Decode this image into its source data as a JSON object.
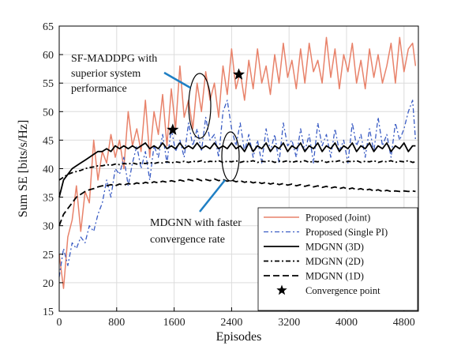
{
  "chart_data": {
    "type": "line",
    "xlabel": "Episodes",
    "ylabel": "Sum SE [bits/s/Hz]",
    "xlim": [
      0,
      5000
    ],
    "ylim": [
      15,
      65
    ],
    "xticks": [
      0,
      800,
      1600,
      2400,
      3200,
      4000,
      4800
    ],
    "yticks": [
      15,
      20,
      25,
      30,
      35,
      40,
      45,
      50,
      55,
      60,
      65
    ],
    "grid": true,
    "legend_position": "bottom-right",
    "series": [
      {
        "name": "Proposed (Joint)",
        "color": "#e8826a",
        "dash": "solid",
        "x": [
          0,
          60,
          120,
          180,
          240,
          300,
          360,
          420,
          480,
          540,
          600,
          660,
          720,
          780,
          840,
          900,
          960,
          1020,
          1080,
          1140,
          1200,
          1260,
          1320,
          1380,
          1440,
          1500,
          1560,
          1620,
          1680,
          1740,
          1800,
          1860,
          1920,
          1980,
          2040,
          2100,
          2160,
          2220,
          2280,
          2340,
          2400,
          2460,
          2520,
          2580,
          2640,
          2700,
          2760,
          2820,
          2880,
          2940,
          3000,
          3060,
          3120,
          3180,
          3240,
          3300,
          3360,
          3420,
          3480,
          3540,
          3600,
          3660,
          3720,
          3780,
          3840,
          3900,
          3960,
          4020,
          4080,
          4140,
          4200,
          4260,
          4320,
          4380,
          4440,
          4500,
          4560,
          4620,
          4680,
          4740,
          4800,
          4860,
          4920,
          4960
        ],
        "y": [
          25,
          19,
          28,
          31,
          37,
          29,
          36,
          34,
          45,
          38,
          43,
          41,
          46,
          42,
          45,
          40,
          50,
          44,
          47,
          43,
          52,
          42,
          50,
          46,
          53,
          44,
          54,
          47,
          58,
          49,
          52,
          47,
          55,
          50,
          57,
          52,
          55,
          49,
          58,
          53,
          61,
          54,
          57,
          52,
          59,
          54,
          61,
          55,
          58,
          53,
          60,
          55,
          62,
          56,
          59,
          54,
          61,
          55,
          62,
          57,
          59,
          55,
          63,
          56,
          61,
          54,
          60,
          57,
          62,
          55,
          59,
          54,
          61,
          56,
          60,
          55,
          58,
          62,
          55,
          63,
          57,
          61,
          62,
          58
        ]
      },
      {
        "name": "Proposed (Single PI)",
        "color": "#3a5cc4",
        "dash": "dashdot",
        "x": [
          0,
          60,
          120,
          180,
          240,
          300,
          360,
          420,
          480,
          540,
          600,
          660,
          720,
          780,
          840,
          900,
          960,
          1020,
          1080,
          1140,
          1200,
          1260,
          1320,
          1380,
          1440,
          1500,
          1560,
          1620,
          1680,
          1740,
          1800,
          1860,
          1920,
          1980,
          2040,
          2100,
          2160,
          2220,
          2280,
          2340,
          2400,
          2460,
          2520,
          2580,
          2640,
          2700,
          2760,
          2820,
          2880,
          2940,
          3000,
          3060,
          3120,
          3180,
          3240,
          3300,
          3360,
          3420,
          3480,
          3540,
          3600,
          3660,
          3720,
          3780,
          3840,
          3900,
          3960,
          4020,
          4080,
          4140,
          4200,
          4260,
          4320,
          4380,
          4440,
          4500,
          4560,
          4620,
          4680,
          4740,
          4800,
          4860,
          4920,
          4960
        ],
        "y": [
          21,
          26,
          23,
          27,
          26,
          28,
          27,
          30,
          29,
          32,
          34,
          38,
          35,
          40,
          39,
          42,
          37,
          41,
          44,
          40,
          43,
          38,
          44,
          42,
          46,
          41,
          47,
          43,
          45,
          42,
          48,
          44,
          47,
          43,
          49,
          45,
          46,
          42,
          50,
          52,
          47,
          44,
          48,
          43,
          46,
          42,
          45,
          41,
          47,
          43,
          46,
          41,
          48,
          44,
          45,
          42,
          47,
          43,
          46,
          41,
          48,
          44,
          46,
          42,
          47,
          43,
          45,
          41,
          48,
          44,
          46,
          42,
          47,
          43,
          49,
          44,
          46,
          42,
          48,
          45,
          47,
          50,
          52,
          45
        ]
      },
      {
        "name": "MDGNN (3D)",
        "color": "#000000",
        "dash": "solid",
        "x": [
          0,
          60,
          120,
          180,
          240,
          300,
          360,
          420,
          480,
          540,
          600,
          660,
          720,
          780,
          840,
          900,
          960,
          1020,
          1080,
          1140,
          1200,
          1260,
          1320,
          1380,
          1440,
          1500,
          1560,
          1620,
          1680,
          1740,
          1800,
          1860,
          1920,
          1980,
          2040,
          2100,
          2160,
          2220,
          2280,
          2340,
          2400,
          2460,
          2520,
          2580,
          2640,
          2700,
          2760,
          2820,
          2880,
          2940,
          3000,
          3060,
          3120,
          3180,
          3240,
          3300,
          3360,
          3420,
          3480,
          3540,
          3600,
          3660,
          3720,
          3780,
          3840,
          3900,
          3960,
          4020,
          4080,
          4140,
          4200,
          4260,
          4320,
          4380,
          4440,
          4500,
          4560,
          4620,
          4680,
          4740,
          4800,
          4860,
          4920,
          4960
        ],
        "y": [
          35,
          38,
          39,
          40,
          40.5,
          41,
          41.5,
          42,
          42.5,
          43,
          43,
          43.5,
          43,
          44,
          43.5,
          44,
          43.5,
          44,
          43.5,
          44,
          44.5,
          43.5,
          44,
          43.5,
          44.5,
          43.5,
          44,
          43.5,
          44.5,
          43.5,
          44,
          43.5,
          44.5,
          43.5,
          44,
          43.5,
          44.5,
          43.5,
          44,
          43.5,
          44.5,
          43.5,
          44,
          43,
          44.5,
          43,
          44,
          43.5,
          44.5,
          43,
          44,
          43.5,
          44.5,
          43,
          44,
          43.5,
          44.5,
          43,
          44,
          43.5,
          44.5,
          43,
          44,
          43.5,
          44.5,
          43,
          44,
          43.5,
          44.5,
          43,
          44,
          43.5,
          44.5,
          43,
          44,
          43.5,
          44.5,
          43,
          44,
          43.5,
          44.5,
          43,
          44,
          44
        ]
      },
      {
        "name": "MDGNN (2D)",
        "color": "#000000",
        "dash": "dashdot",
        "x": [
          0,
          60,
          120,
          180,
          240,
          300,
          360,
          420,
          480,
          540,
          600,
          660,
          720,
          780,
          840,
          900,
          960,
          1020,
          1080,
          1140,
          1200,
          1260,
          1320,
          1380,
          1440,
          1500,
          1560,
          1620,
          1680,
          1740,
          1800,
          1860,
          1920,
          1980,
          2040,
          2100,
          2160,
          2220,
          2280,
          2340,
          2400,
          2460,
          2520,
          2580,
          2640,
          2700,
          2760,
          2820,
          2880,
          2940,
          3000,
          3060,
          3120,
          3180,
          3240,
          3300,
          3360,
          3420,
          3480,
          3540,
          3600,
          3660,
          3720,
          3780,
          3840,
          3900,
          3960,
          4020,
          4080,
          4140,
          4200,
          4260,
          4320,
          4380,
          4440,
          4500,
          4560,
          4620,
          4680,
          4740,
          4800,
          4860,
          4920,
          4960
        ],
        "y": [
          38,
          38.5,
          39,
          39.3,
          39.5,
          39.7,
          40,
          40.2,
          40.3,
          40.5,
          40.5,
          40.7,
          40.6,
          40.8,
          40.7,
          40.9,
          40.8,
          41,
          40.8,
          41,
          40.9,
          41.1,
          40.9,
          41.1,
          41,
          41.2,
          41,
          41.2,
          41.1,
          41.3,
          41.1,
          41.3,
          41.2,
          41.4,
          41.1,
          41.3,
          41.2,
          41.4,
          41.1,
          41.3,
          41.2,
          41.4,
          41.1,
          41.3,
          41.2,
          41.4,
          41.1,
          41.3,
          41.2,
          41.4,
          41.1,
          41.3,
          41.2,
          41.4,
          41.1,
          41.3,
          41.2,
          41.4,
          41.1,
          41.3,
          41.2,
          41.4,
          41.1,
          41.3,
          41.2,
          41.4,
          41.1,
          41.3,
          41.2,
          41.4,
          41.1,
          41.3,
          41.2,
          41.4,
          41.1,
          41.3,
          41.2,
          41.4,
          41.1,
          41.3,
          41.2,
          41.4,
          41.1,
          41.2
        ]
      },
      {
        "name": "MDGNN (1D)",
        "color": "#000000",
        "dash": "dashed",
        "x": [
          0,
          60,
          120,
          180,
          240,
          300,
          360,
          420,
          480,
          540,
          600,
          660,
          720,
          780,
          840,
          900,
          960,
          1020,
          1080,
          1140,
          1200,
          1260,
          1320,
          1380,
          1440,
          1500,
          1560,
          1620,
          1680,
          1740,
          1800,
          1860,
          1920,
          1980,
          2040,
          2100,
          2160,
          2220,
          2280,
          2340,
          2400,
          2460,
          2520,
          2580,
          2640,
          2700,
          2760,
          2820,
          2880,
          2940,
          3000,
          3060,
          3120,
          3180,
          3240,
          3300,
          3360,
          3420,
          3480,
          3540,
          3600,
          3660,
          3720,
          3780,
          3840,
          3900,
          3960,
          4020,
          4080,
          4140,
          4200,
          4260,
          4320,
          4380,
          4440,
          4500,
          4560,
          4620,
          4680,
          4740,
          4800,
          4860,
          4920,
          4960
        ],
        "y": [
          30,
          32,
          33,
          34,
          35,
          35.5,
          36,
          36.3,
          36.5,
          36.8,
          37,
          37,
          37.2,
          37,
          37.3,
          37.1,
          37.4,
          37.2,
          37.5,
          37.3,
          37.6,
          37.4,
          37.7,
          37.5,
          37.8,
          37.6,
          37.9,
          37.7,
          38,
          37.8,
          38.1,
          37.9,
          38.2,
          37.9,
          38.1,
          37.9,
          38.2,
          37.9,
          38.1,
          37.8,
          38,
          37.7,
          37.9,
          37.6,
          37.8,
          37.5,
          37.7,
          37.4,
          37.6,
          37.3,
          37.5,
          37.2,
          37.4,
          37.1,
          37.3,
          37,
          37.2,
          36.9,
          37.1,
          36.8,
          37,
          36.7,
          36.9,
          36.6,
          36.8,
          36.5,
          36.7,
          36.4,
          36.6,
          36.3,
          36.5,
          36.2,
          36.4,
          36.1,
          36.3,
          36.0,
          36.2,
          36.0,
          36.1,
          36.0,
          36.1,
          36.0,
          36.1,
          36.0
        ]
      }
    ],
    "convergence_points": {
      "name": "Convergence point",
      "points": [
        {
          "x": 1580,
          "y": 46.8
        },
        {
          "x": 2500,
          "y": 56.5
        }
      ]
    },
    "annotations": [
      {
        "id": "sf",
        "lines": [
          "SF-MADDPG with",
          "superior system",
          "performance"
        ]
      },
      {
        "id": "mdgnn",
        "lines": [
          "MDGNN with faster",
          "convergence rate"
        ]
      }
    ]
  }
}
